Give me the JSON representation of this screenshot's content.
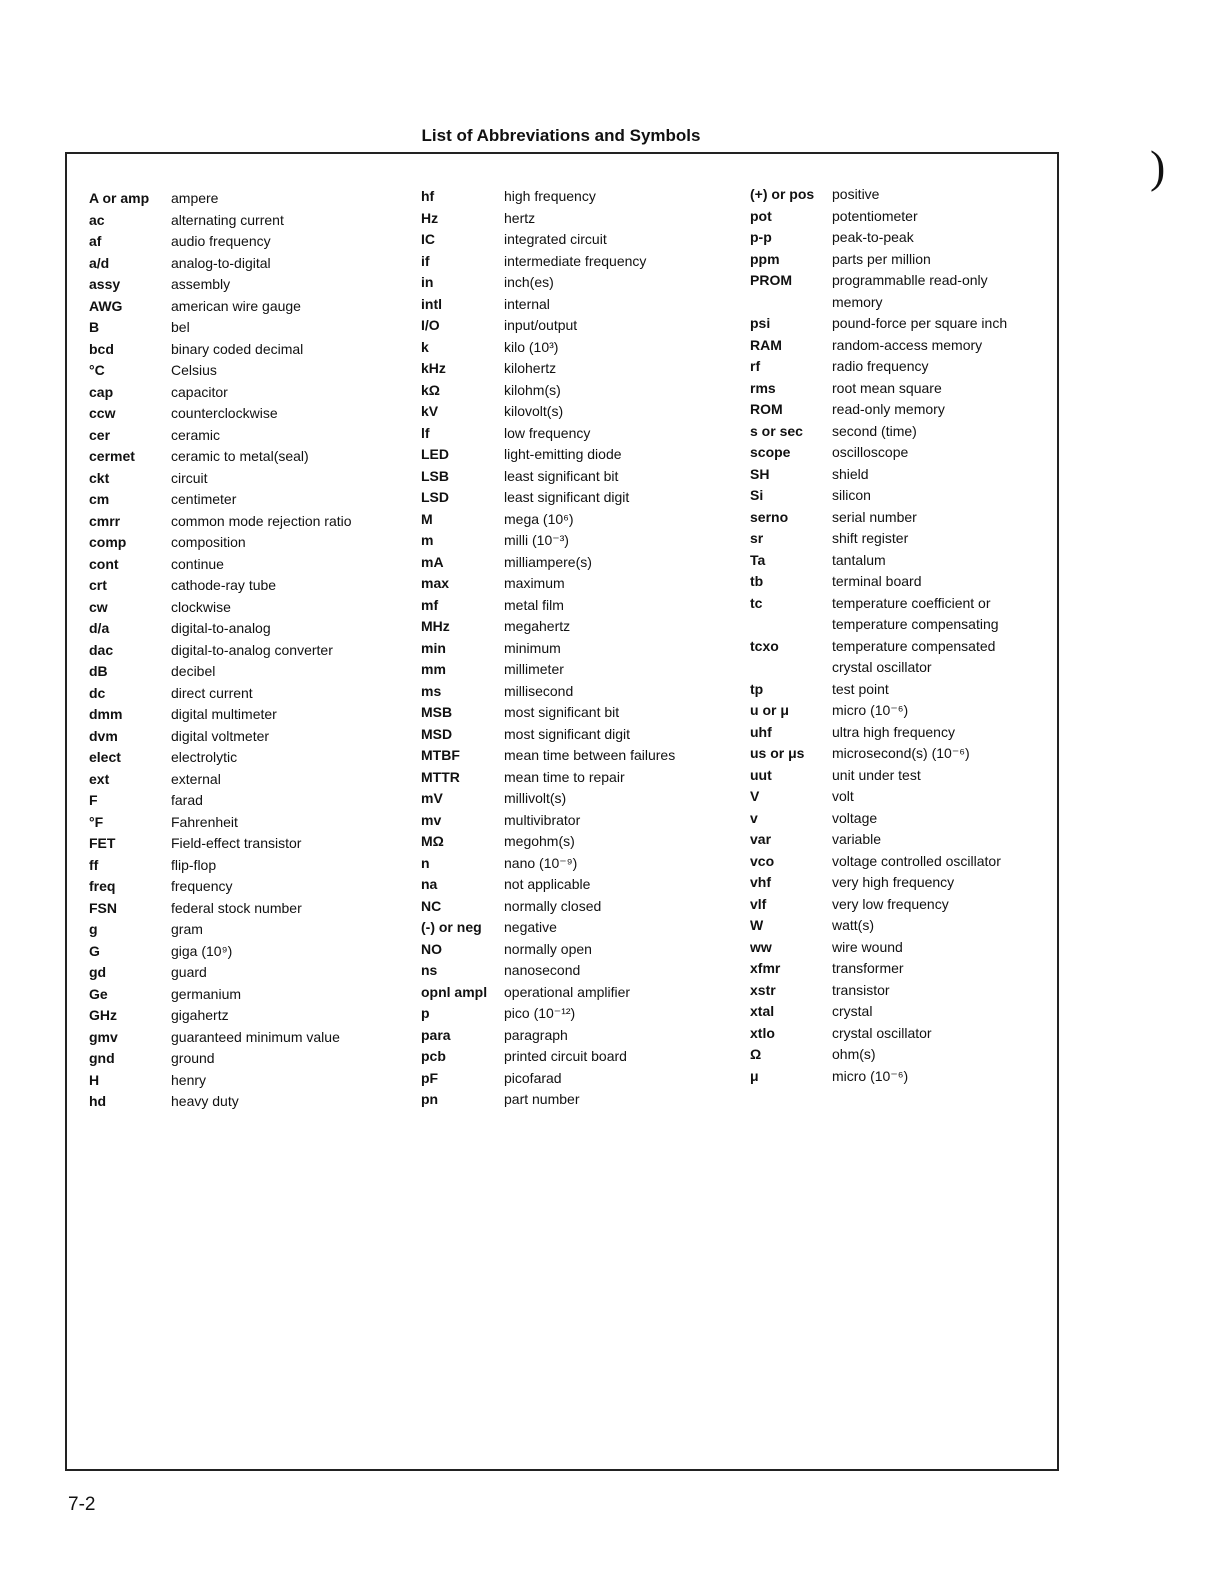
{
  "title": "List of Abbreviations and Symbols",
  "page_number": "7-2",
  "margin_mark": ")",
  "columns": [
    [
      [
        "A or amp",
        "ampere"
      ],
      [
        "ac",
        "alternating current"
      ],
      [
        "af",
        "audio frequency"
      ],
      [
        "a/d",
        "analog-to-digital"
      ],
      [
        "assy",
        "assembly"
      ],
      [
        "AWG",
        "american wire gauge"
      ],
      [
        "B",
        "bel"
      ],
      [
        "bcd",
        "binary coded decimal"
      ],
      [
        "°C",
        "Celsius"
      ],
      [
        "cap",
        "capacitor"
      ],
      [
        "ccw",
        "counterclockwise"
      ],
      [
        "cer",
        "ceramic"
      ],
      [
        "cermet",
        "ceramic to metal(seal)"
      ],
      [
        "ckt",
        "circuit"
      ],
      [
        "cm",
        "centimeter"
      ],
      [
        "cmrr",
        "common mode rejection ratio"
      ],
      [
        "comp",
        "composition"
      ],
      [
        "cont",
        "continue"
      ],
      [
        "crt",
        "cathode-ray tube"
      ],
      [
        "cw",
        "clockwise"
      ],
      [
        "d/a",
        "digital-to-analog"
      ],
      [
        "dac",
        "digital-to-analog converter"
      ],
      [
        "dB",
        "decibel"
      ],
      [
        "dc",
        "direct current"
      ],
      [
        "dmm",
        "digital multimeter"
      ],
      [
        "dvm",
        "digital voltmeter"
      ],
      [
        "elect",
        "electrolytic"
      ],
      [
        "ext",
        "external"
      ],
      [
        "F",
        "farad"
      ],
      [
        "°F",
        "Fahrenheit"
      ],
      [
        "FET",
        "Field-effect transistor"
      ],
      [
        "ff",
        "flip-flop"
      ],
      [
        "freq",
        "frequency"
      ],
      [
        "FSN",
        "federal stock number"
      ],
      [
        "g",
        "gram"
      ],
      [
        "G",
        "giga (10⁹)"
      ],
      [
        "gd",
        "guard"
      ],
      [
        "Ge",
        "germanium"
      ],
      [
        "GHz",
        "gigahertz"
      ],
      [
        "gmv",
        "guaranteed minimum value"
      ],
      [
        "gnd",
        "ground"
      ],
      [
        "H",
        "henry"
      ],
      [
        "hd",
        "heavy duty"
      ]
    ],
    [
      [
        "hf",
        "high frequency"
      ],
      [
        "Hz",
        "hertz"
      ],
      [
        "IC",
        "integrated circuit"
      ],
      [
        "if",
        "intermediate frequency"
      ],
      [
        "in",
        "inch(es)"
      ],
      [
        "intl",
        "internal"
      ],
      [
        "I/O",
        "input/output"
      ],
      [
        "k",
        "kilo (10³)"
      ],
      [
        "kHz",
        "kilohertz"
      ],
      [
        "kΩ",
        "kilohm(s)"
      ],
      [
        "kV",
        "kilovolt(s)"
      ],
      [
        "lf",
        "low frequency"
      ],
      [
        "LED",
        "light-emitting diode"
      ],
      [
        "LSB",
        "least significant bit"
      ],
      [
        "LSD",
        "least significant digit"
      ],
      [
        "M",
        "mega (10⁶)"
      ],
      [
        "m",
        "milli (10⁻³)"
      ],
      [
        "mA",
        "milliampere(s)"
      ],
      [
        "max",
        "maximum"
      ],
      [
        "mf",
        "metal film"
      ],
      [
        "MHz",
        "megahertz"
      ],
      [
        "min",
        "minimum"
      ],
      [
        "mm",
        "millimeter"
      ],
      [
        "ms",
        "millisecond"
      ],
      [
        "MSB",
        "most significant bit"
      ],
      [
        "MSD",
        "most significant digit"
      ],
      [
        "MTBF",
        "mean time between failures"
      ],
      [
        "MTTR",
        "mean time to repair"
      ],
      [
        "mV",
        "millivolt(s)"
      ],
      [
        "mv",
        "multivibrator"
      ],
      [
        "MΩ",
        "megohm(s)"
      ],
      [
        "n",
        "nano (10⁻⁹)"
      ],
      [
        "na",
        "not applicable"
      ],
      [
        "NC",
        "normally closed"
      ],
      [
        "(-) or neg",
        "negative"
      ],
      [
        "NO",
        "normally open"
      ],
      [
        "ns",
        "nanosecond"
      ],
      [
        "opnl ampl",
        "operational amplifier"
      ],
      [
        "p",
        "pico (10⁻¹²)"
      ],
      [
        "para",
        "paragraph"
      ],
      [
        "pcb",
        "printed circuit board"
      ],
      [
        "pF",
        "picofarad"
      ],
      [
        "pn",
        "part number"
      ]
    ],
    [
      [
        "(+) or pos",
        "positive"
      ],
      [
        "pot",
        "potentiometer"
      ],
      [
        "p-p",
        "peak-to-peak"
      ],
      [
        "ppm",
        "parts per million"
      ],
      [
        "PROM",
        "programmablle read-only"
      ],
      [
        "",
        "memory"
      ],
      [
        "psi",
        "pound-force per square inch"
      ],
      [
        "RAM",
        "random-access memory"
      ],
      [
        "rf",
        "radio frequency"
      ],
      [
        "rms",
        "root mean square"
      ],
      [
        "ROM",
        "read-only memory"
      ],
      [
        "s or sec",
        "second (time)"
      ],
      [
        "scope",
        "oscilloscope"
      ],
      [
        "SH",
        "shield"
      ],
      [
        "Si",
        "silicon"
      ],
      [
        "serno",
        "serial number"
      ],
      [
        "sr",
        "shift register"
      ],
      [
        "Ta",
        "tantalum"
      ],
      [
        "tb",
        "terminal board"
      ],
      [
        "tc",
        "temperature coefficient or"
      ],
      [
        "",
        "temperature compensating"
      ],
      [
        "tcxo",
        "temperature compensated"
      ],
      [
        "",
        "crystal oscillator"
      ],
      [
        "tp",
        "test point"
      ],
      [
        "u or μ",
        "micro (10⁻⁶)"
      ],
      [
        "uhf",
        "ultra high frequency"
      ],
      [
        "us or μs",
        "microsecond(s) (10⁻⁶)"
      ],
      [
        "uut",
        "unit under test"
      ],
      [
        "V",
        "volt"
      ],
      [
        "v",
        "voltage"
      ],
      [
        "var",
        "variable"
      ],
      [
        "vco",
        "voltage controlled oscillator"
      ],
      [
        "vhf",
        "very high frequency"
      ],
      [
        "vlf",
        "very low frequency"
      ],
      [
        "W",
        "watt(s)"
      ],
      [
        "ww",
        "wire wound"
      ],
      [
        "xfmr",
        "transformer"
      ],
      [
        "xstr",
        "transistor"
      ],
      [
        "xtal",
        "crystal"
      ],
      [
        "xtlo",
        "crystal oscillator"
      ],
      [
        "Ω",
        "ohm(s)"
      ],
      [
        "μ",
        "micro (10⁻⁶)"
      ]
    ]
  ]
}
